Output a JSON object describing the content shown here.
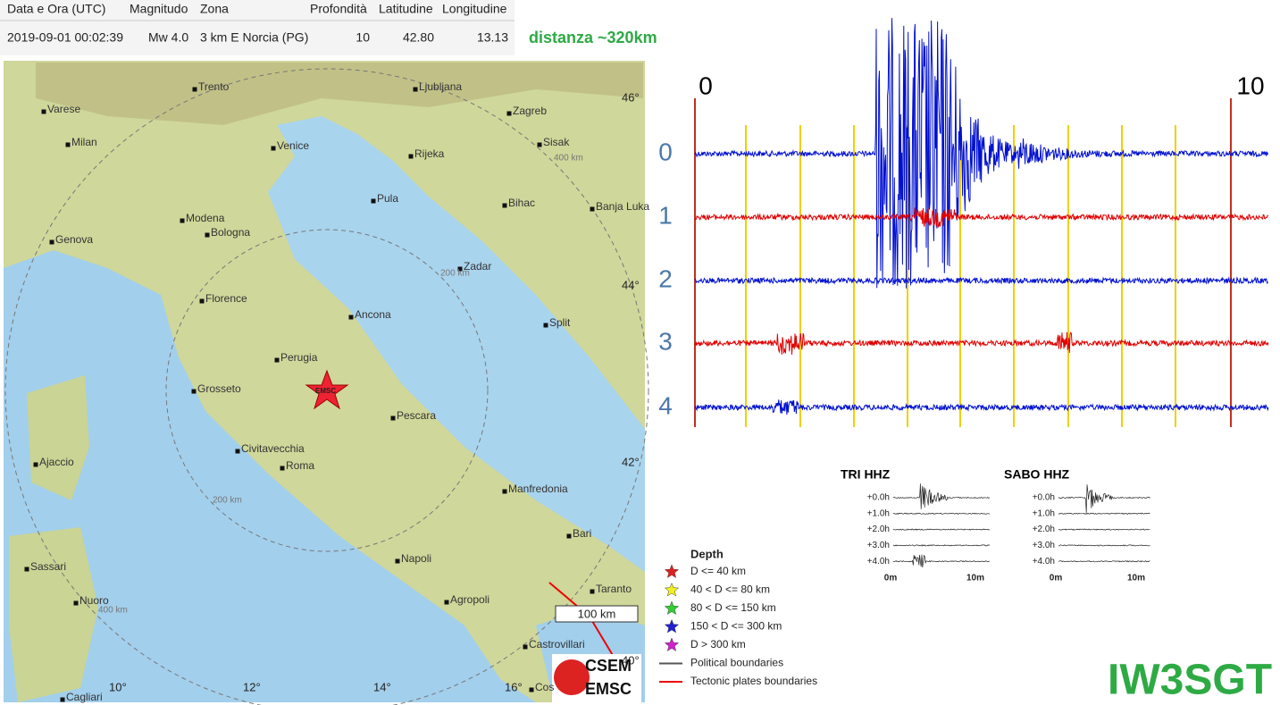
{
  "table": {
    "headers": [
      "Data e Ora (UTC)",
      "Magnitudo",
      "Zona",
      "Profondità",
      "Latitudine",
      "Longitudine"
    ],
    "row": [
      "2019-09-01 00:02:39",
      "Mw 4.0",
      "3 km E Norcia (PG)",
      "10",
      "42.80",
      "13.13"
    ]
  },
  "note": "distanza ~320km",
  "map": {
    "cities": [
      "Trento",
      "Varese",
      "Ljubljana",
      "Zagreb",
      "Milan",
      "Venice",
      "Sisak",
      "Rijeka",
      "Pula",
      "Bihac",
      "Banja Luka",
      "Modena",
      "Bologna",
      "Genova",
      "Zadar",
      "Florence",
      "Ancona",
      "Split",
      "Perugia",
      "Grosseto",
      "Pescara",
      "Ajaccio",
      "Civitavecchia",
      "Roma",
      "Manfredonia",
      "Bari",
      "Sassari",
      "Napoli",
      "Taranto",
      "Nuoro",
      "Agropoli",
      "Castrovillari",
      "Cagliari",
      "Cos"
    ],
    "lat_labels": [
      "46°",
      "44°",
      "42°",
      "40°"
    ],
    "lon_labels": [
      "10°",
      "12°",
      "14°",
      "16°"
    ],
    "distance_labels": [
      "400 km",
      "200 km",
      "200 km",
      "400 km"
    ],
    "epicenter_label": "EMSC",
    "scale": "100 km",
    "legend_title": "Depth",
    "legend": [
      "D <= 40 km",
      "40 < D <= 80 km",
      "80 < D <= 150 km",
      "150 < D <= 300 km",
      "D > 300 km",
      "Political boundaries",
      "Tectonic plates boundaries"
    ],
    "logo": [
      "CSEM",
      "EMSC"
    ]
  },
  "seismogram": {
    "start_label": "0",
    "end_label": "10",
    "rows": [
      "0",
      "1",
      "2",
      "3",
      "4"
    ]
  },
  "mini": [
    {
      "title": "TRI HHZ",
      "rows": [
        "+0.0h",
        "+1.0h",
        "+2.0h",
        "+3.0h",
        "+4.0h"
      ],
      "x_labels": [
        "0m",
        "10m"
      ]
    },
    {
      "title": "SABO HHZ",
      "rows": [
        "+0.0h",
        "+1.0h",
        "+2.0h",
        "+3.0h",
        "+4.0h"
      ],
      "x_labels": [
        "0m",
        "10m"
      ]
    }
  ],
  "callsign": "IW3SGT"
}
